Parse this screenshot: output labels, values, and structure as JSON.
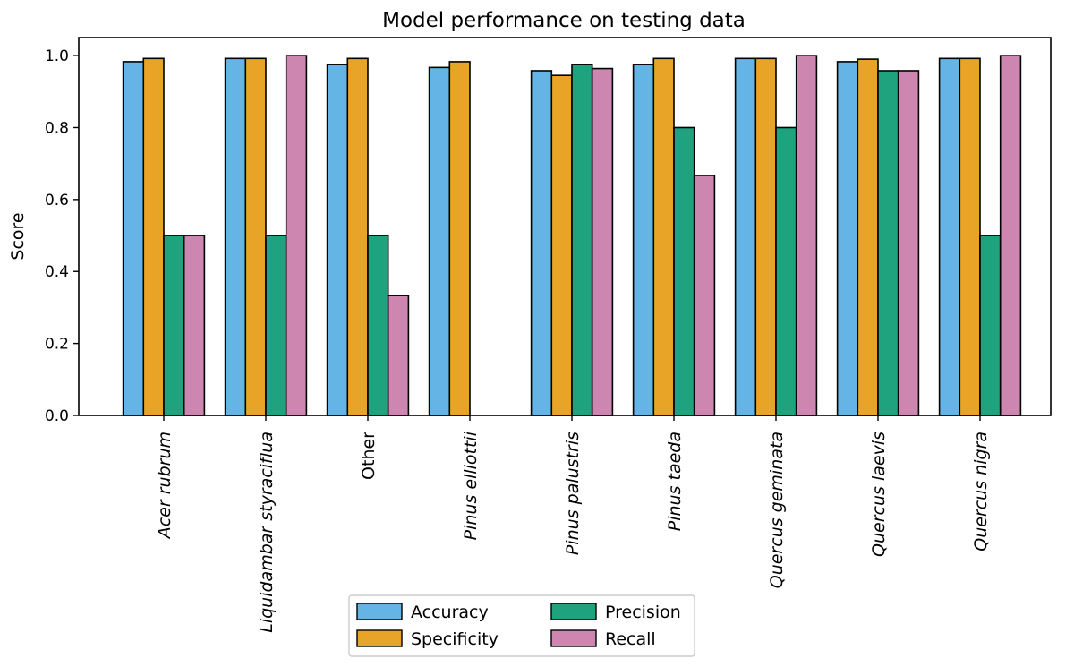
{
  "chart_data": {
    "type": "bar",
    "title": "Model performance on testing data",
    "xlabel": "",
    "ylabel": "Score",
    "ylim": [
      0,
      1.05
    ],
    "yticks": [
      "0.0",
      "0.2",
      "0.4",
      "0.6",
      "0.8",
      "1.0"
    ],
    "ytick_values": [
      0,
      0.2,
      0.4,
      0.6,
      0.8,
      1.0
    ],
    "grid": false,
    "legend_position": "bottom-center",
    "categories": [
      {
        "label": "Acer rubrum",
        "italic": true
      },
      {
        "label": "Liquidambar styraciflua",
        "italic": true
      },
      {
        "label": "Other",
        "italic": false
      },
      {
        "label": "Pinus elliottii",
        "italic": true
      },
      {
        "label": "Pinus palustris",
        "italic": true
      },
      {
        "label": "Pinus taeda",
        "italic": true
      },
      {
        "label": "Quercus geminata",
        "italic": true
      },
      {
        "label": "Quercus laevis",
        "italic": true
      },
      {
        "label": "Quercus nigra",
        "italic": true
      }
    ],
    "series": [
      {
        "name": "Accuracy",
        "color": "#64b5e6",
        "values": [
          0.983,
          0.992,
          0.975,
          0.967,
          0.958,
          0.975,
          0.992,
          0.983,
          0.992
        ]
      },
      {
        "name": "Specificity",
        "color": "#e8a426",
        "values": [
          0.992,
          0.992,
          0.992,
          0.983,
          0.945,
          0.992,
          0.992,
          0.99,
          0.992
        ]
      },
      {
        "name": "Precision",
        "color": "#1fa37f",
        "values": [
          0.5,
          0.5,
          0.5,
          0.0,
          0.975,
          0.8,
          0.8,
          0.958,
          0.5
        ]
      },
      {
        "name": "Recall",
        "color": "#cd86b0",
        "values": [
          0.5,
          1.0,
          0.333,
          0.0,
          0.964,
          0.667,
          1.0,
          0.958,
          1.0
        ]
      }
    ]
  }
}
